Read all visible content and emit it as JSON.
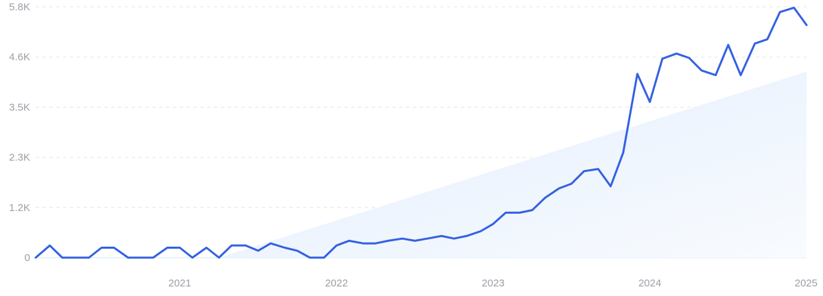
{
  "chart_data": {
    "type": "line",
    "title": "",
    "xlabel": "",
    "ylabel": "",
    "ylim": [
      0,
      5800
    ],
    "y_ticks": [
      {
        "value": 0,
        "label": "0"
      },
      {
        "value": 1160,
        "label": "1.2K"
      },
      {
        "value": 2320,
        "label": "2.3K"
      },
      {
        "value": 3480,
        "label": "3.5K"
      },
      {
        "value": 4640,
        "label": "4.6K"
      },
      {
        "value": 5800,
        "label": "5.8K"
      }
    ],
    "x_range": [
      2020.08,
      2025.0
    ],
    "x_ticks": [
      {
        "value": 2021,
        "label": "2021"
      },
      {
        "value": 2022,
        "label": "2022"
      },
      {
        "value": 2023,
        "label": "2023"
      },
      {
        "value": 2024,
        "label": "2024"
      },
      {
        "value": 2025,
        "label": "2025"
      }
    ],
    "grid": true,
    "trend_area": {
      "x": [
        2021.25,
        2025.0
      ],
      "y": [
        0,
        4300
      ]
    },
    "series": [
      {
        "color": "#3461e2",
        "x": [
          2020.08,
          2020.17,
          2020.25,
          2020.33,
          2020.42,
          2020.5,
          2020.58,
          2020.67,
          2020.75,
          2020.83,
          2020.92,
          2021.0,
          2021.08,
          2021.17,
          2021.25,
          2021.33,
          2021.42,
          2021.5,
          2021.58,
          2021.67,
          2021.75,
          2021.83,
          2021.92,
          2022.0,
          2022.08,
          2022.17,
          2022.25,
          2022.33,
          2022.42,
          2022.5,
          2022.58,
          2022.67,
          2022.75,
          2022.83,
          2022.92,
          2023.0,
          2023.08,
          2023.17,
          2023.25,
          2023.33,
          2023.42,
          2023.5,
          2023.58,
          2023.67,
          2023.75,
          2023.83,
          2023.92,
          2024.0,
          2024.08,
          2024.17,
          2024.25,
          2024.33,
          2024.42,
          2024.5,
          2024.58,
          2024.67,
          2024.75,
          2024.83,
          2024.92,
          2025.0
        ],
        "y": [
          0,
          280,
          0,
          0,
          0,
          230,
          230,
          0,
          0,
          0,
          230,
          230,
          0,
          230,
          0,
          280,
          280,
          160,
          330,
          230,
          160,
          0,
          0,
          280,
          390,
          330,
          330,
          390,
          440,
          390,
          440,
          500,
          440,
          500,
          610,
          780,
          1040,
          1040,
          1100,
          1380,
          1600,
          1710,
          2000,
          2050,
          1650,
          2430,
          4250,
          3600,
          4600,
          4720,
          4620,
          4330,
          4220,
          4920,
          4220,
          4950,
          5050,
          5680,
          5780,
          5380
        ]
      }
    ]
  }
}
